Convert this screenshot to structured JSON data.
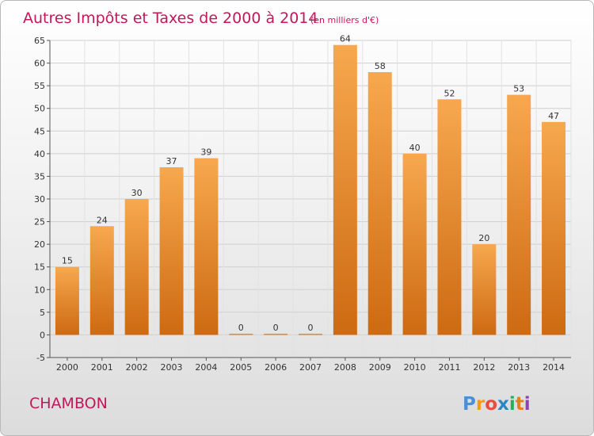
{
  "chart_data": {
    "type": "bar",
    "title": "Autres Impôts et Taxes de 2000 à 2014",
    "subtitle": "(en milliers d'€)",
    "categories": [
      "2000",
      "2001",
      "2002",
      "2003",
      "2004",
      "2005",
      "2006",
      "2007",
      "2008",
      "2009",
      "2010",
      "2011",
      "2012",
      "2013",
      "2014"
    ],
    "values": [
      15,
      24,
      30,
      37,
      39,
      0,
      0,
      0,
      64,
      58,
      40,
      52,
      20,
      53,
      47
    ],
    "ylim": [
      -5,
      65
    ],
    "yticks": [
      -5,
      0,
      5,
      10,
      15,
      20,
      25,
      30,
      35,
      40,
      45,
      50,
      55,
      60,
      65
    ],
    "grid": true,
    "legend": "none",
    "bar_color": "#f0902a"
  },
  "footer": {
    "commune": "CHAMBON",
    "logo_letters": [
      "P",
      "r",
      "o",
      "x",
      "i",
      "t",
      "i"
    ]
  },
  "colors": {
    "title": "#c2185b",
    "logo": [
      "#4a90d9",
      "#f39c12",
      "#e74c3c",
      "#2e86c1",
      "#27ae60",
      "#e67e22",
      "#8e44ad"
    ]
  }
}
